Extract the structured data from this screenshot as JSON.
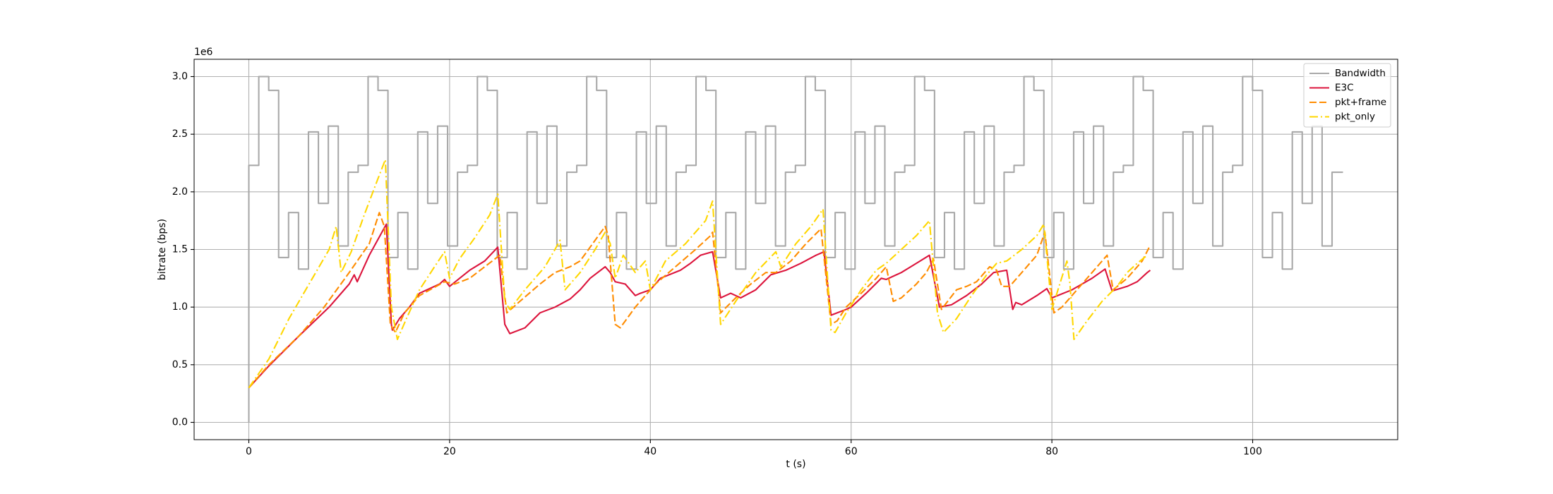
{
  "chart_data": {
    "type": "line",
    "x_label": "t (s)",
    "y_label": "bitrate (bps)",
    "y_offset_label": "1e6",
    "xlim": [
      -5.45,
      114.45
    ],
    "ylim": [
      -150000,
      3150000
    ],
    "xticks": [
      0,
      20,
      40,
      60,
      80,
      100
    ],
    "yticks": [
      {
        "value": 0,
        "label": "0.0"
      },
      {
        "value": 500000,
        "label": "0.5"
      },
      {
        "value": 1000000,
        "label": "1.0"
      },
      {
        "value": 1500000,
        "label": "1.5"
      },
      {
        "value": 2000000,
        "label": "2.0"
      },
      {
        "value": 2500000,
        "label": "2.5"
      },
      {
        "value": 3000000,
        "label": "3.0"
      }
    ],
    "grid": true,
    "legend": "upper right",
    "series": [
      {
        "name": "Bandwidth",
        "color": "#a9a9a9",
        "dash": "solid",
        "drawstyle": "steps-post",
        "x": [
          0,
          0,
          0.99,
          1.98,
          2.97,
          3.96,
          4.95,
          5.94,
          6.93,
          7.92,
          8.91,
          9.9,
          10.89,
          11.88,
          12.87,
          13.86,
          14.85,
          15.84,
          16.83,
          17.82,
          18.81,
          19.8,
          20.79,
          21.78,
          22.77,
          23.76,
          24.75,
          25.74,
          26.73,
          27.72,
          28.71,
          29.7,
          30.69,
          31.68,
          32.67,
          33.66,
          34.65,
          35.64,
          36.63,
          37.62,
          38.61,
          39.6,
          40.59,
          41.58,
          42.57,
          43.56,
          44.55,
          45.54,
          46.53,
          47.52,
          48.51,
          49.5,
          50.49,
          51.48,
          52.47,
          53.46,
          54.45,
          55.44,
          56.43,
          57.42,
          58.41,
          59.4,
          60.39,
          61.38,
          62.37,
          63.36,
          64.35,
          65.34,
          66.33,
          67.32,
          68.31,
          69.3,
          70.29,
          71.28,
          72.27,
          73.26,
          74.25,
          75.24,
          76.23,
          77.22,
          78.21,
          79.2,
          80.19,
          81.18,
          82.17,
          83.16,
          84.15,
          85.14,
          86.13,
          87.12,
          88.11,
          89.1,
          90.09,
          91.08,
          92.07,
          93.06,
          94.05,
          95.04,
          96.03,
          97.02,
          98.01,
          99,
          99.99,
          100.98,
          101.97,
          102.96,
          103.95,
          104.94,
          105.93,
          106.92,
          107.91,
          109
        ],
        "values": [
          0,
          2230000.0,
          3000000.0,
          2880000.0,
          1430000.0,
          1820000.0,
          1330000.0,
          2520000.0,
          1900000.0,
          2570000.0,
          1530000.0,
          2170000.0,
          2230000.0,
          3000000.0,
          2880000.0,
          1430000.0,
          1820000.0,
          1330000.0,
          2520000.0,
          1900000.0,
          2570000.0,
          1530000.0,
          2170000.0,
          2230000.0,
          3000000.0,
          2880000.0,
          1430000.0,
          1820000.0,
          1330000.0,
          2520000.0,
          1900000.0,
          2570000.0,
          1530000.0,
          2170000.0,
          2230000.0,
          3000000.0,
          2880000.0,
          1430000.0,
          1820000.0,
          1330000.0,
          2520000.0,
          1900000.0,
          2570000.0,
          1530000.0,
          2170000.0,
          2230000.0,
          3000000.0,
          2880000.0,
          1430000.0,
          1820000.0,
          1330000.0,
          2520000.0,
          1900000.0,
          2570000.0,
          1530000.0,
          2170000.0,
          2230000.0,
          3000000.0,
          2880000.0,
          1430000.0,
          1820000.0,
          1330000.0,
          2520000.0,
          1900000.0,
          2570000.0,
          1530000.0,
          2170000.0,
          2230000.0,
          3000000.0,
          2880000.0,
          1430000.0,
          1820000.0,
          1330000.0,
          2520000.0,
          1900000.0,
          2570000.0,
          1530000.0,
          2170000.0,
          2230000.0,
          3000000.0,
          2880000.0,
          1430000.0,
          1820000.0,
          1330000.0,
          2520000.0,
          1900000.0,
          2570000.0,
          1530000.0,
          2170000.0,
          2230000.0,
          3000000.0,
          2880000.0,
          1430000.0,
          1820000.0,
          1330000.0,
          2520000.0,
          1900000.0,
          2570000.0,
          1530000.0,
          2170000.0,
          2230000.0,
          3000000.0,
          2880000.0,
          1430000.0,
          1820000.0,
          1330000.0,
          2520000.0,
          1900000.0,
          2570000.0,
          1530000.0,
          2170000.0,
          2170000.0
        ]
      },
      {
        "name": "E3C",
        "color": "#dc143c",
        "dash": "solid",
        "drawstyle": "default",
        "x": [
          0,
          2,
          5,
          8,
          10,
          10.5,
          10.8,
          12,
          13.7,
          14.2,
          14.3,
          15,
          16,
          17,
          19,
          19.5,
          20,
          21,
          22,
          23.5,
          24.8,
          25.5,
          26,
          27.5,
          29,
          30.5,
          32,
          33,
          34,
          35.5,
          36,
          36.5,
          37.5,
          38.5,
          39,
          40,
          41,
          43,
          44,
          45,
          46.2,
          47,
          48,
          49,
          50.5,
          52,
          53.5,
          55,
          56.5,
          57.3,
          58,
          59.5,
          60,
          61.5,
          63,
          63.5,
          65,
          66.5,
          67.8,
          68.8,
          70,
          71.5,
          73,
          74.2,
          75.5,
          76.1,
          76.4,
          77,
          78.5,
          79.5,
          80,
          82,
          84,
          85.3,
          86,
          87.5,
          88.5,
          89.5,
          89.8
        ],
        "values": [
          300000.0,
          490000.0,
          750000.0,
          1000000.0,
          1200000.0,
          1280000.0,
          1220000.0,
          1450000.0,
          1720000.0,
          850000.0,
          800000.0,
          900000.0,
          1000000.0,
          1120000.0,
          1200000.0,
          1240000.0,
          1180000.0,
          1250000.0,
          1320000.0,
          1400000.0,
          1520000.0,
          850000.0,
          770000.0,
          820000.0,
          950000.0,
          1000000.0,
          1070000.0,
          1150000.0,
          1250000.0,
          1350000.0,
          1300000.0,
          1220000.0,
          1200000.0,
          1100000.0,
          1120000.0,
          1150000.0,
          1250000.0,
          1320000.0,
          1380000.0,
          1450000.0,
          1480000.0,
          1080000.0,
          1120000.0,
          1080000.0,
          1150000.0,
          1280000.0,
          1320000.0,
          1380000.0,
          1450000.0,
          1480000.0,
          930000.0,
          980000.0,
          1000000.0,
          1120000.0,
          1250000.0,
          1240000.0,
          1300000.0,
          1380000.0,
          1450000.0,
          1000000.0,
          1020000.0,
          1100000.0,
          1200000.0,
          1300000.0,
          1320000.0,
          980000.0,
          1040000.0,
          1020000.0,
          1100000.0,
          1160000.0,
          1080000.0,
          1150000.0,
          1250000.0,
          1330000.0,
          1140000.0,
          1180000.0,
          1220000.0,
          1300000.0,
          1320000.0
        ]
      },
      {
        "name": "pkt+frame",
        "color": "#ff8c00",
        "dash": "dashed",
        "drawstyle": "default",
        "x": [
          0,
          2,
          5,
          7.5,
          10,
          12,
          13,
          13.5,
          14.1,
          14.6,
          15.5,
          17,
          19.5,
          20.5,
          22,
          23.5,
          25,
          25.7,
          27,
          29,
          30.5,
          32,
          33,
          34,
          35.5,
          35.8,
          36.5,
          37,
          38.5,
          40.5,
          42.5,
          44.5,
          46,
          46.2,
          47,
          48.5,
          50,
          51.5,
          52.5,
          54,
          55.5,
          57,
          58,
          58.6,
          59.5,
          61,
          62.5,
          63.5,
          64.2,
          65,
          66.5,
          67.5,
          68.2,
          69,
          70.5,
          71.5,
          72.5,
          73.8,
          74.5,
          75,
          75.8,
          77,
          78.5,
          79.3,
          80.2,
          81,
          82.5,
          84,
          85.5,
          86.1,
          87.5,
          89,
          89.7
        ],
        "values": [
          300000.0,
          500000.0,
          750000.0,
          1000000.0,
          1300000.0,
          1550000.0,
          1820000.0,
          1700000.0,
          850000.0,
          780000.0,
          950000.0,
          1100000.0,
          1220000.0,
          1200000.0,
          1250000.0,
          1350000.0,
          1450000.0,
          950000.0,
          1050000.0,
          1200000.0,
          1300000.0,
          1350000.0,
          1400000.0,
          1520000.0,
          1700000.0,
          1620000.0,
          850000.0,
          820000.0,
          1000000.0,
          1200000.0,
          1350000.0,
          1500000.0,
          1620000.0,
          1650000.0,
          950000.0,
          1080000.0,
          1200000.0,
          1300000.0,
          1300000.0,
          1400000.0,
          1550000.0,
          1680000.0,
          850000.0,
          880000.0,
          1000000.0,
          1120000.0,
          1250000.0,
          1350000.0,
          1050000.0,
          1080000.0,
          1200000.0,
          1300000.0,
          1420000.0,
          980000.0,
          1150000.0,
          1180000.0,
          1220000.0,
          1350000.0,
          1320000.0,
          1180000.0,
          1180000.0,
          1300000.0,
          1450000.0,
          1650000.0,
          950000.0,
          1000000.0,
          1150000.0,
          1300000.0,
          1450000.0,
          1150000.0,
          1250000.0,
          1400000.0,
          1520000.0
        ]
      },
      {
        "name": "pkt_only",
        "color": "#ffd700",
        "dash": "dashdot",
        "drawstyle": "default",
        "x": [
          0,
          2,
          4,
          6,
          8,
          8.7,
          9.2,
          10.2,
          11.5,
          12.8,
          13.6,
          14.2,
          14.8,
          15.7,
          17,
          18.5,
          19.5,
          20,
          21,
          22.5,
          24,
          24.8,
          25.5,
          26,
          27.5,
          29.5,
          30.5,
          31,
          31.5,
          33,
          34.5,
          35.5,
          36,
          36.5,
          37.3,
          38.5,
          39.5,
          40,
          41.5,
          43.5,
          45.5,
          46.2,
          47,
          48.5,
          50.5,
          52.5,
          53,
          54.5,
          56,
          57.2,
          58,
          58.4,
          59.5,
          61,
          62.5,
          63.5,
          65,
          66.5,
          67.8,
          68.6,
          69.2,
          70.5,
          72,
          73.5,
          74.5,
          75.5,
          77,
          78.5,
          79.2,
          80,
          81.5,
          81.8,
          82.2,
          83.5,
          85,
          86.5,
          87.5,
          88.5,
          89.5
        ],
        "values": [
          300000.0,
          550000.0,
          900000.0,
          1200000.0,
          1500000.0,
          1700000.0,
          1300000.0,
          1480000.0,
          1800000.0,
          2100000.0,
          2280000.0,
          1000000.0,
          720000.0,
          900000.0,
          1150000.0,
          1350000.0,
          1480000.0,
          1250000.0,
          1420000.0,
          1600000.0,
          1800000.0,
          1980000.0,
          1050000.0,
          980000.0,
          1150000.0,
          1350000.0,
          1500000.0,
          1580000.0,
          1150000.0,
          1300000.0,
          1500000.0,
          1650000.0,
          1550000.0,
          1250000.0,
          1450000.0,
          1300000.0,
          1400000.0,
          1150000.0,
          1400000.0,
          1550000.0,
          1750000.0,
          1920000.0,
          850000.0,
          1050000.0,
          1300000.0,
          1480000.0,
          1350000.0,
          1550000.0,
          1700000.0,
          1850000.0,
          800000.0,
          780000.0,
          950000.0,
          1150000.0,
          1320000.0,
          1380000.0,
          1500000.0,
          1620000.0,
          1750000.0,
          950000.0,
          780000.0,
          900000.0,
          1100000.0,
          1280000.0,
          1380000.0,
          1400000.0,
          1500000.0,
          1620000.0,
          1720000.0,
          980000.0,
          1400000.0,
          1200000.0,
          720000.0,
          880000.0,
          1050000.0,
          1180000.0,
          1300000.0,
          1380000.0,
          1450000.0
        ]
      }
    ]
  }
}
